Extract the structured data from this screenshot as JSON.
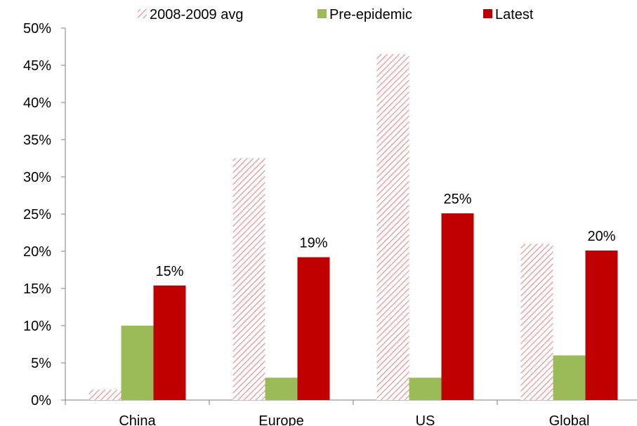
{
  "chart_data": {
    "type": "bar",
    "categories": [
      "China",
      "Europe",
      "US",
      "Global"
    ],
    "series": [
      {
        "name": "2008-2009 avg",
        "values": [
          1.4,
          32.5,
          46.5,
          21.0
        ],
        "color": "#e8888a",
        "pattern": "hatched"
      },
      {
        "name": "Pre-epidemic",
        "values": [
          10.0,
          3.0,
          3.0,
          6.0
        ],
        "color": "#9bbb59"
      },
      {
        "name": "Latest",
        "values": [
          15.4,
          19.2,
          25.1,
          20.1
        ],
        "color": "#c00000"
      }
    ],
    "data_labels": {
      "series": "Latest",
      "texts": [
        "15%",
        "19%",
        "25%",
        "20%"
      ]
    },
    "y_ticks": [
      "0%",
      "5%",
      "10%",
      "15%",
      "20%",
      "25%",
      "30%",
      "35%",
      "40%",
      "45%",
      "50%"
    ],
    "ylim": [
      0,
      50
    ],
    "y_unit": "%",
    "grid": false,
    "legend_position": "top"
  }
}
